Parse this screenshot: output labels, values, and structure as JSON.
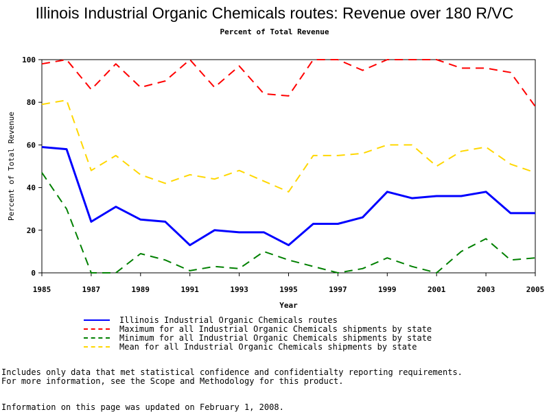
{
  "chart_data": {
    "type": "line",
    "title": "Illinois Industrial Organic Chemicals routes: Revenue over 180 R/VC",
    "subtitle": "Percent of Total Revenue",
    "xlabel": "Year",
    "ylabel": "Percent of Total Revenue",
    "xlim": [
      1985,
      2005
    ],
    "ylim": [
      0,
      100
    ],
    "x_ticks": [
      1985,
      1987,
      1989,
      1991,
      1993,
      1995,
      1997,
      1999,
      2001,
      2003,
      2005
    ],
    "y_ticks": [
      0,
      20,
      40,
      60,
      80,
      100
    ],
    "x": [
      1985,
      1986,
      1987,
      1988,
      1989,
      1990,
      1991,
      1992,
      1993,
      1994,
      1995,
      1996,
      1997,
      1998,
      1999,
      2000,
      2001,
      2002,
      2003,
      2004,
      2005
    ],
    "series": [
      {
        "name": "Illinois Industrial Organic Chemicals routes",
        "color": "#0000ff",
        "style": "solid",
        "values": [
          59,
          58,
          24,
          31,
          25,
          24,
          13,
          20,
          19,
          19,
          13,
          23,
          23,
          26,
          38,
          35,
          36,
          36,
          38,
          28,
          28
        ]
      },
      {
        "name": "Maximum for all Industrial Organic Chemicals shipments by state",
        "color": "#ff0000",
        "style": "dashed",
        "values": [
          98,
          100,
          86,
          98,
          87,
          90,
          100,
          87,
          97,
          84,
          83,
          100,
          100,
          95,
          100,
          100,
          100,
          96,
          96,
          94,
          78
        ]
      },
      {
        "name": "Minimum for all Industrial Organic Chemicals shipments by state",
        "color": "#008000",
        "style": "dashed",
        "values": [
          47,
          30,
          0,
          0,
          9,
          6,
          1,
          3,
          2,
          10,
          6,
          3,
          0,
          2,
          7,
          3,
          0,
          10,
          16,
          6,
          7
        ]
      },
      {
        "name": "Mean for all Industrial Organic Chemicals shipments by state",
        "color": "#ffd700",
        "style": "dashed",
        "values": [
          79,
          81,
          48,
          55,
          46,
          42,
          46,
          44,
          48,
          43,
          38,
          55,
          55,
          56,
          60,
          60,
          50,
          57,
          59,
          51,
          47
        ]
      }
    ],
    "grid": false,
    "legend_position": "bottom-left"
  },
  "footnotes": [
    "Includes only data that met statistical confidence and confidentialty reporting requirements.",
    "For more information, see the Scope and Methodology for this product.",
    "Information on this page was updated on February 1, 2008."
  ]
}
